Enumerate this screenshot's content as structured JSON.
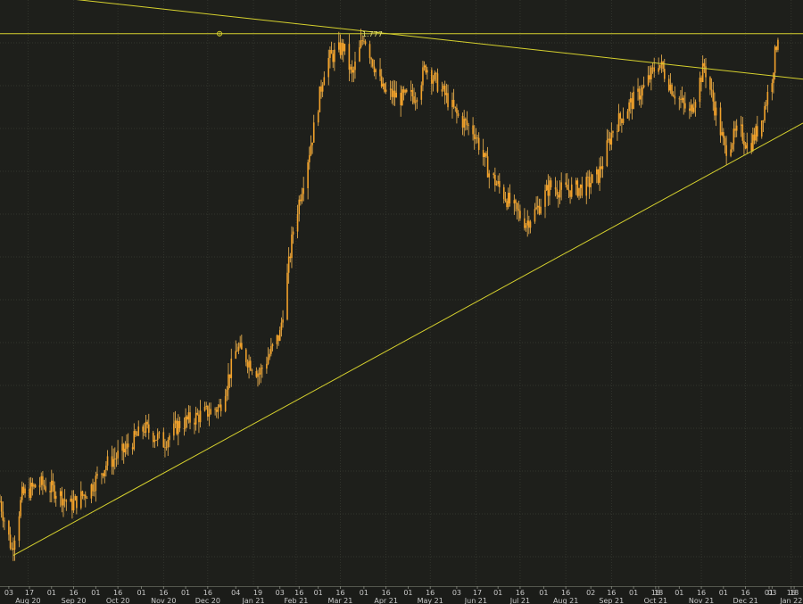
{
  "colors": {
    "background": "#1e1f1b",
    "grid": "#3a3d35",
    "candle": "#f2a22b",
    "wick": "#f7b850",
    "trendline": "#d6d12e",
    "axis_text": "#c9c9c9"
  },
  "chart_data": {
    "type": "candlestick",
    "title": "",
    "xlabel": "",
    "ylabel": "",
    "grid": true,
    "x_range": [
      "2020-07-28",
      "2022-01-24"
    ],
    "y_range": [
      1.4,
      1.8
    ],
    "annotation": {
      "label": "1.777",
      "value": 1.777,
      "date": "2021-04-01"
    },
    "horizontal_level": {
      "value": 1.777,
      "marker": "circle-cross"
    },
    "trendlines": [
      {
        "name": "descending",
        "points": [
          [
            "2020-07-28",
            1.806
          ],
          [
            "2022-01-24",
            1.746
          ]
        ]
      },
      {
        "name": "ascending",
        "points": [
          [
            "2020-08-06",
            1.421
          ],
          [
            "2022-01-24",
            1.716
          ]
        ]
      }
    ],
    "price_path": [
      [
        "2020-07-28",
        1.458
      ],
      [
        "2020-08-05",
        1.425
      ],
      [
        "2020-08-12",
        1.462
      ],
      [
        "2020-08-24",
        1.47
      ],
      [
        "2020-09-04",
        1.465
      ],
      [
        "2020-09-14",
        1.455
      ],
      [
        "2020-09-26",
        1.465
      ],
      [
        "2020-10-08",
        1.483
      ],
      [
        "2020-10-20",
        1.492
      ],
      [
        "2020-11-03",
        1.508
      ],
      [
        "2020-11-16",
        1.498
      ],
      [
        "2020-11-26",
        1.51
      ],
      [
        "2020-12-14",
        1.518
      ],
      [
        "2020-12-24",
        1.522
      ],
      [
        "2021-01-05",
        1.563
      ],
      [
        "2021-01-20",
        1.545
      ],
      [
        "2021-02-03",
        1.572
      ],
      [
        "2021-02-12",
        1.643
      ],
      [
        "2021-02-26",
        1.712
      ],
      [
        "2021-03-06",
        1.758
      ],
      [
        "2021-03-18",
        1.768
      ],
      [
        "2021-03-24",
        1.748
      ],
      [
        "2021-04-01",
        1.776
      ],
      [
        "2021-04-14",
        1.738
      ],
      [
        "2021-04-26",
        1.733
      ],
      [
        "2021-05-06",
        1.735
      ],
      [
        "2021-05-13",
        1.755
      ],
      [
        "2021-05-26",
        1.735
      ],
      [
        "2021-06-04",
        1.72
      ],
      [
        "2021-06-15",
        1.71
      ],
      [
        "2021-06-25",
        1.682
      ],
      [
        "2021-07-10",
        1.66
      ],
      [
        "2021-07-20",
        1.648
      ],
      [
        "2021-07-28",
        1.658
      ],
      [
        "2021-08-05",
        1.673
      ],
      [
        "2021-08-14",
        1.67
      ],
      [
        "2021-08-28",
        1.672
      ],
      [
        "2021-09-07",
        1.68
      ],
      [
        "2021-09-17",
        1.712
      ],
      [
        "2021-09-28",
        1.728
      ],
      [
        "2021-10-08",
        1.74
      ],
      [
        "2021-10-18",
        1.758
      ],
      [
        "2021-10-28",
        1.738
      ],
      [
        "2021-11-08",
        1.722
      ],
      [
        "2021-11-18",
        1.755
      ],
      [
        "2021-11-28",
        1.715
      ],
      [
        "2021-12-02",
        1.698
      ],
      [
        "2021-12-12",
        1.712
      ],
      [
        "2021-12-18",
        1.699
      ],
      [
        "2021-12-26",
        1.715
      ],
      [
        "2022-01-03",
        1.748
      ],
      [
        "2022-01-07",
        1.777
      ]
    ],
    "x_ticks": [
      "03",
      "17",
      "01",
      "16",
      "01",
      "16",
      "01",
      "16",
      "01",
      "16",
      "04",
      "19",
      "03",
      "16",
      "01",
      "16",
      "01",
      "16",
      "01",
      "16",
      "03",
      "17",
      "01",
      "16",
      "01",
      "16",
      "02",
      "16",
      "01",
      "16",
      "01",
      "16",
      "18",
      "01",
      "16",
      "01",
      "16",
      "03",
      "18"
    ],
    "x_tick_dates": [
      "2020-08-03",
      "2020-08-17",
      "2020-09-01",
      "2020-09-16",
      "2020-10-01",
      "2020-10-16",
      "2020-11-01",
      "2020-11-16",
      "2020-12-01",
      "2020-12-16",
      "2021-01-04",
      "2021-01-19",
      "2021-02-03",
      "2021-02-16",
      "2021-03-01",
      "2021-03-16",
      "2021-04-01",
      "2021-04-16",
      "2021-05-01",
      "2021-05-16",
      "2021-06-03",
      "2021-06-17",
      "2021-07-01",
      "2021-07-16",
      "2021-08-01",
      "2021-08-16",
      "2021-09-02",
      "2021-09-16",
      "2021-10-01",
      "2021-10-16",
      "2021-11-01",
      "2021-11-16",
      "2021-10-18",
      "2021-12-01",
      "2021-12-16",
      "2022-01-01",
      "2022-01-16",
      "2022-01-03",
      "2022-01-18"
    ],
    "months": [
      [
        "Aug 20",
        "2020-08-16"
      ],
      [
        "Sep 20",
        "2020-09-16"
      ],
      [
        "Oct 20",
        "2020-10-16"
      ],
      [
        "Nov 20",
        "2020-11-16"
      ],
      [
        "Dec 20",
        "2020-12-16"
      ],
      [
        "Jan 21",
        "2021-01-16"
      ],
      [
        "Feb 21",
        "2021-02-14"
      ],
      [
        "Mar 21",
        "2021-03-16"
      ],
      [
        "Apr 21",
        "2021-04-16"
      ],
      [
        "May 21",
        "2021-05-16"
      ],
      [
        "Jun 21",
        "2021-06-16"
      ],
      [
        "Jul 21",
        "2021-07-16"
      ],
      [
        "Aug 21",
        "2021-08-16"
      ],
      [
        "Sep 21",
        "2021-09-16"
      ],
      [
        "Oct 21",
        "2021-10-16"
      ],
      [
        "Nov 21",
        "2021-11-16"
      ],
      [
        "Dec 21",
        "2021-12-16"
      ],
      [
        "Jan 22",
        "2022-01-16"
      ]
    ]
  }
}
